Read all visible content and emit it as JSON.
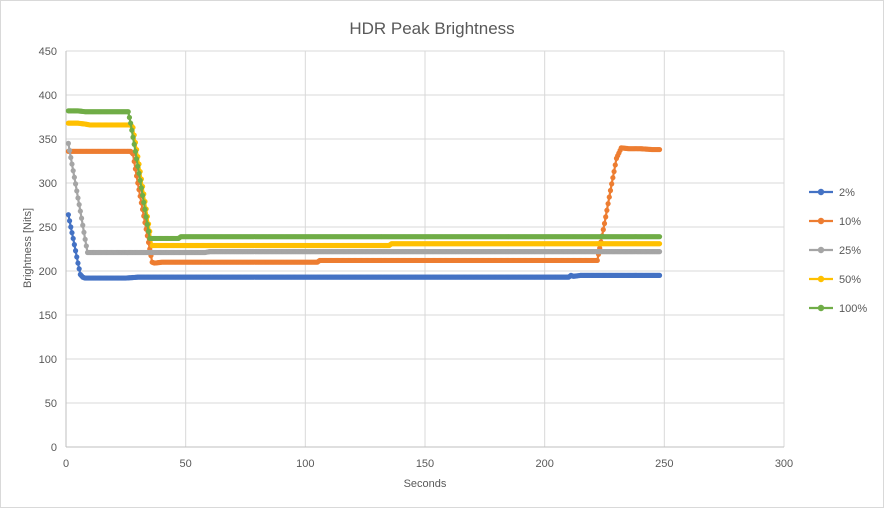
{
  "chart_data": {
    "type": "line",
    "title": "HDR Peak Brightness",
    "xlabel": "Seconds",
    "ylabel": "Brightness [Nits]",
    "xlim": [
      0,
      300
    ],
    "ylim": [
      0,
      450
    ],
    "xticks": [
      0,
      50,
      100,
      150,
      200,
      250,
      300
    ],
    "yticks": [
      0,
      50,
      100,
      150,
      200,
      250,
      300,
      350,
      400,
      450
    ],
    "grid": true,
    "legend_position": "right",
    "series": [
      {
        "name": "2%",
        "color": "#4472c4",
        "x": [
          1,
          2,
          3,
          4,
          5,
          6,
          7,
          8,
          10,
          15,
          20,
          25,
          30,
          40,
          50,
          60,
          80,
          100,
          120,
          140,
          160,
          180,
          200,
          210,
          211,
          212,
          215,
          220,
          230,
          240,
          248
        ],
        "y": [
          264,
          250,
          237,
          223,
          209,
          196,
          193,
          192,
          192,
          192,
          192,
          192,
          193,
          193,
          193,
          193,
          193,
          193,
          193,
          193,
          193,
          193,
          193,
          193,
          195,
          194,
          195,
          195,
          195,
          195,
          195
        ]
      },
      {
        "name": "10%",
        "color": "#ed7d31",
        "x": [
          1,
          5,
          10,
          15,
          20,
          25,
          27,
          28,
          29,
          30,
          31,
          32,
          33,
          34,
          35,
          36,
          37,
          40,
          50,
          60,
          80,
          100,
          105,
          106,
          120,
          140,
          160,
          180,
          200,
          210,
          220,
          222,
          223,
          224,
          225,
          226,
          227,
          228,
          229,
          230,
          232,
          235,
          240,
          245,
          248
        ],
        "y": [
          336,
          336,
          336,
          336,
          336,
          336,
          336,
          333,
          316,
          300,
          285,
          270,
          255,
          240,
          225,
          210,
          209,
          210,
          210,
          210,
          210,
          210,
          210,
          212,
          212,
          212,
          212,
          212,
          212,
          212,
          212,
          212,
          226,
          240,
          254,
          269,
          284,
          299,
          313,
          328,
          340,
          339,
          339,
          338,
          338
        ]
      },
      {
        "name": "25%",
        "color": "#a5a5a5",
        "x": [
          1,
          2,
          3,
          4,
          5,
          6,
          7,
          8,
          9,
          10,
          15,
          20,
          30,
          40,
          50,
          58,
          60,
          80,
          100,
          120,
          140,
          160,
          180,
          200,
          220,
          240,
          248
        ],
        "y": [
          345,
          329,
          314,
          299,
          283,
          268,
          252,
          236,
          221,
          221,
          221,
          221,
          221,
          221,
          221,
          221,
          222,
          222,
          222,
          222,
          222,
          222,
          222,
          222,
          222,
          222,
          222
        ]
      },
      {
        "name": "50%",
        "color": "#ffc000",
        "x": [
          1,
          5,
          8,
          10,
          15,
          20,
          25,
          27,
          28,
          29,
          30,
          31,
          32,
          33,
          34,
          35,
          36,
          40,
          50,
          60,
          80,
          100,
          120,
          135,
          136,
          140,
          160,
          180,
          200,
          220,
          240,
          248
        ],
        "y": [
          368,
          368,
          367,
          366,
          366,
          366,
          366,
          366,
          363,
          346,
          330,
          313,
          296,
          279,
          262,
          245,
          229,
          229,
          229,
          229,
          229,
          229,
          229,
          229,
          231,
          231,
          231,
          231,
          231,
          231,
          231,
          231
        ]
      },
      {
        "name": "100%",
        "color": "#70ad47",
        "x": [
          1,
          5,
          8,
          10,
          15,
          20,
          25,
          26,
          27,
          28,
          29,
          30,
          31,
          32,
          33,
          34,
          35,
          40,
          47,
          48,
          60,
          80,
          100,
          120,
          140,
          160,
          180,
          200,
          220,
          240,
          248
        ],
        "y": [
          382,
          382,
          381,
          381,
          381,
          381,
          381,
          381,
          368,
          352,
          336,
          319,
          303,
          286,
          270,
          253,
          237,
          237,
          237,
          239,
          239,
          239,
          239,
          239,
          239,
          239,
          239,
          239,
          239,
          239,
          239
        ]
      }
    ]
  }
}
